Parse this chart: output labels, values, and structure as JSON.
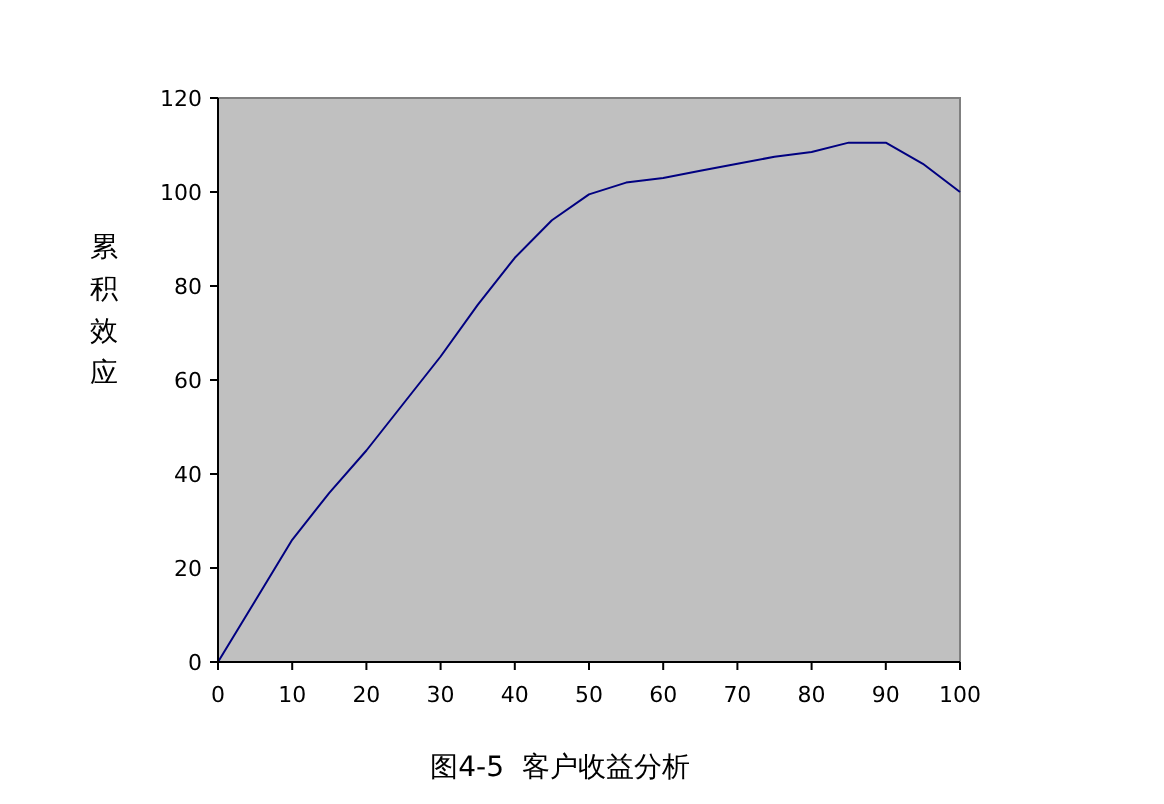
{
  "chart_data": {
    "type": "line",
    "ylabel": "累积效应",
    "annotations": [
      "图4-5  客户收益分析"
    ],
    "x": [
      0,
      5,
      10,
      15,
      20,
      25,
      30,
      35,
      40,
      45,
      50,
      55,
      60,
      65,
      70,
      75,
      80,
      85,
      90,
      95,
      100
    ],
    "series": [
      {
        "color": "#000080",
        "values": [
          0,
          13,
          26,
          36,
          45,
          55,
          65,
          76,
          86,
          94,
          99.5,
          102,
          103,
          104.5,
          106,
          107.5,
          108.5,
          110.5,
          110.5,
          106,
          100
        ]
      }
    ],
    "xlim": [
      0,
      100
    ],
    "xticks": [
      0,
      10,
      20,
      30,
      40,
      50,
      60,
      70,
      80,
      90,
      100
    ],
    "ylim": [
      0,
      120
    ],
    "yticks": [
      0,
      20,
      40,
      60,
      80,
      100,
      120
    ],
    "grid": false,
    "marker": "none",
    "line_style": "solid"
  }
}
